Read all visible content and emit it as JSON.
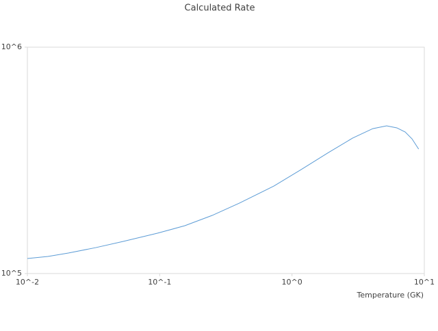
{
  "chart_data": {
    "type": "line",
    "title": "Calculated Rate",
    "x_label": "Temperature (GK)",
    "x": [
      0.01,
      0.0143,
      0.0204,
      0.0329,
      0.053,
      0.0961,
      0.155,
      0.249,
      0.401,
      0.731,
      1.17,
      1.89,
      2.87,
      4.08,
      5.19,
      6.2,
      7.17,
      8.07,
      9.06
    ],
    "series": [
      {
        "name": "Calculated Rate",
        "color": "#5b9bd5",
        "values": [
          116500,
          119000,
          123200,
          130200,
          138700,
          150700,
          162700,
          180600,
          204800,
          243700,
          287800,
          342700,
          396600,
          436700,
          449500,
          440200,
          422000,
          393600,
          354700
        ]
      }
    ],
    "xlim": [
      0.01,
      10
    ],
    "ylim": [
      100000,
      1000000
    ],
    "xticks": [
      {
        "value": 0.01,
        "label": "10^-2"
      },
      {
        "value": 0.1,
        "label": "10^-1"
      },
      {
        "value": 1,
        "label": "10^0"
      },
      {
        "value": 10,
        "label": "10^1"
      }
    ],
    "yticks": [
      {
        "value": 100000,
        "label": "10^5"
      },
      {
        "value": 1000000,
        "label": "10^6"
      }
    ],
    "x_log": true,
    "y_log": true
  }
}
